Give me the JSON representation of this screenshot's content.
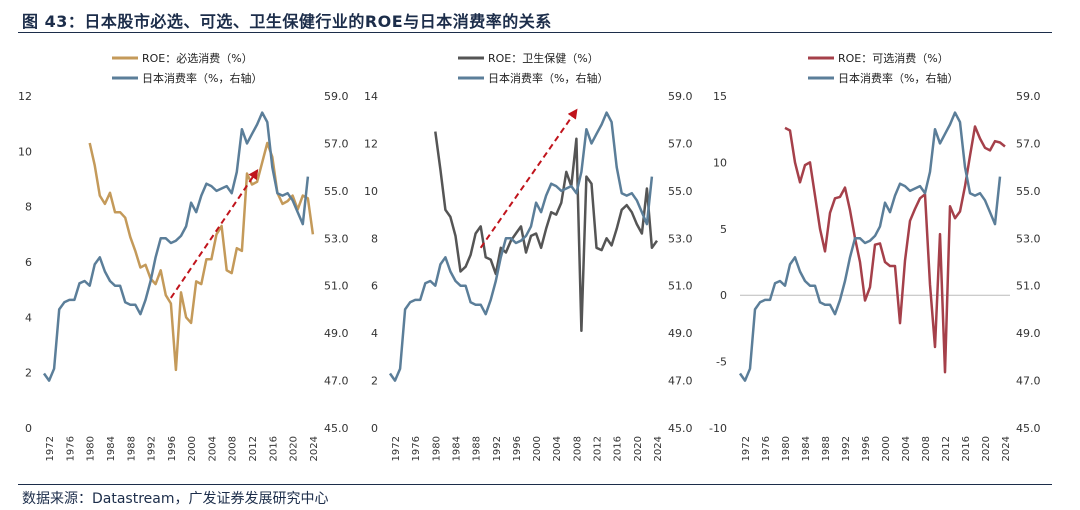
{
  "header": {
    "title": "图 43：日本股市必选、可选、卫生保健行业的ROE与日本消费率的关系"
  },
  "footer": {
    "source": "数据来源：Datastream，广发证券发展研究中心"
  },
  "colors": {
    "title": "#1c2d4a",
    "consumption": "#5b7e99",
    "staples": "#c49a5a",
    "healthcare": "#555555",
    "discretionary": "#a5404a",
    "arrow": "#c0141c"
  },
  "chart_data": [
    {
      "type": "line",
      "panel": "left",
      "x_ticks": [
        "1972",
        "1976",
        "1980",
        "1984",
        "1988",
        "1992",
        "1996",
        "2000",
        "2004",
        "2008",
        "2012",
        "2016",
        "2020",
        "2024"
      ],
      "y_left_ticks": [
        "0",
        "2",
        "4",
        "6",
        "8",
        "10",
        "12"
      ],
      "y_right_ticks": [
        "45.0",
        "47.0",
        "49.0",
        "51.0",
        "53.0",
        "55.0",
        "57.0",
        "59.0"
      ],
      "ylim_left": [
        0,
        12
      ],
      "ylim_right": [
        45,
        59
      ],
      "xlim": [
        1971,
        2025
      ],
      "legend": [
        "ROE：必选消费（%）",
        "日本消费率（%，右轴）"
      ],
      "annotation": "dashed red arrow showing rising trend",
      "arrow": [
        [
          1996,
          4.7
        ],
        [
          2013,
          9.3
        ]
      ],
      "series": [
        {
          "name": "ROE：必选消费（%）",
          "axis": "left",
          "color": "#c49a5a",
          "x": [
            1980,
            1981,
            1982,
            1983,
            1984,
            1985,
            1986,
            1987,
            1988,
            1989,
            1990,
            1991,
            1992,
            1993,
            1994,
            1995,
            1996,
            1997,
            1998,
            1999,
            2000,
            2001,
            2002,
            2003,
            2004,
            2005,
            2006,
            2007,
            2008,
            2009,
            2010,
            2011,
            2012,
            2013,
            2014,
            2015,
            2016,
            2017,
            2018,
            2019,
            2020,
            2021,
            2022,
            2023,
            2024
          ],
          "values": [
            10.3,
            9.5,
            8.4,
            8.1,
            8.5,
            7.8,
            7.8,
            7.6,
            6.9,
            6.4,
            5.8,
            5.9,
            5.4,
            5.2,
            5.7,
            4.8,
            4.5,
            2.1,
            4.9,
            4.0,
            3.8,
            5.3,
            5.2,
            6.1,
            6.1,
            7.0,
            7.3,
            5.7,
            5.6,
            6.5,
            6.4,
            9.2,
            8.8,
            8.9,
            9.6,
            10.3,
            9.8,
            8.5,
            8.1,
            8.2,
            8.4,
            7.9,
            8.4,
            8.3,
            7.0
          ]
        },
        {
          "name": "日本消费率（%，右轴）",
          "axis": "right",
          "color": "#5b7e99",
          "x": [
            1971,
            1972,
            1973,
            1974,
            1975,
            1976,
            1977,
            1978,
            1979,
            1980,
            1981,
            1982,
            1983,
            1984,
            1985,
            1986,
            1987,
            1988,
            1989,
            1990,
            1991,
            1992,
            1993,
            1994,
            1995,
            1996,
            1997,
            1998,
            1999,
            2000,
            2001,
            2002,
            2003,
            2004,
            2005,
            2006,
            2007,
            2008,
            2009,
            2010,
            2011,
            2012,
            2013,
            2014,
            2015,
            2016,
            2017,
            2018,
            2019,
            2020,
            2021,
            2022,
            2023
          ],
          "values": [
            47.3,
            47.0,
            47.5,
            50.0,
            50.3,
            50.4,
            50.4,
            51.1,
            51.2,
            51.0,
            51.9,
            52.2,
            51.6,
            51.2,
            51.0,
            51.0,
            50.3,
            50.2,
            50.2,
            49.8,
            50.4,
            51.2,
            52.2,
            53.0,
            53.0,
            52.8,
            52.9,
            53.1,
            53.5,
            54.5,
            54.1,
            54.8,
            55.3,
            55.2,
            55.0,
            55.1,
            55.2,
            54.9,
            55.8,
            57.6,
            57.0,
            57.4,
            57.8,
            58.3,
            57.9,
            56.0,
            54.9,
            54.8,
            54.9,
            54.6,
            54.1,
            53.6,
            55.6
          ]
        }
      ]
    },
    {
      "type": "line",
      "panel": "middle",
      "x_ticks": [
        "1972",
        "1976",
        "1980",
        "1984",
        "1988",
        "1992",
        "1996",
        "2000",
        "2004",
        "2008",
        "2012",
        "2016",
        "2020",
        "2024"
      ],
      "y_left_ticks": [
        "0",
        "2",
        "4",
        "6",
        "8",
        "10",
        "12",
        "14"
      ],
      "y_right_ticks": [
        "45.0",
        "47.0",
        "49.0",
        "51.0",
        "53.0",
        "55.0",
        "57.0",
        "59.0"
      ],
      "ylim_left": [
        0,
        14
      ],
      "ylim_right": [
        45,
        59
      ],
      "xlim": [
        1971,
        2025
      ],
      "legend": [
        "ROE：卫生保健（%）",
        "日本消费率（%，右轴）"
      ],
      "annotation": "dashed red arrow showing rising trend",
      "arrow": [
        [
          1989,
          7.6
        ],
        [
          2008,
          13.4
        ]
      ],
      "series": [
        {
          "name": "ROE：卫生保健（%）",
          "axis": "left",
          "color": "#555555",
          "x": [
            1980,
            1981,
            1982,
            1983,
            1984,
            1985,
            1986,
            1987,
            1988,
            1989,
            1990,
            1991,
            1992,
            1993,
            1994,
            1995,
            1996,
            1997,
            1998,
            1999,
            2000,
            2001,
            2002,
            2003,
            2004,
            2005,
            2006,
            2007,
            2008,
            2009,
            2010,
            2011,
            2012,
            2013,
            2014,
            2015,
            2016,
            2017,
            2018,
            2019,
            2020,
            2021,
            2022,
            2023,
            2024
          ],
          "values": [
            12.5,
            10.9,
            9.2,
            8.9,
            8.1,
            6.6,
            6.8,
            7.3,
            8.2,
            8.5,
            7.2,
            7.1,
            6.5,
            7.6,
            7.4,
            7.9,
            8.2,
            8.5,
            7.4,
            8.1,
            8.2,
            7.6,
            8.4,
            9.1,
            9.0,
            9.5,
            10.8,
            10.2,
            12.2,
            4.1,
            10.6,
            10.3,
            7.6,
            7.5,
            8.0,
            7.7,
            8.4,
            9.2,
            9.4,
            9.1,
            8.6,
            8.2,
            10.1,
            7.6,
            7.9
          ]
        },
        {
          "name": "日本消费率（%，右轴）",
          "axis": "right",
          "color": "#5b7e99",
          "x": [
            1971,
            1972,
            1973,
            1974,
            1975,
            1976,
            1977,
            1978,
            1979,
            1980,
            1981,
            1982,
            1983,
            1984,
            1985,
            1986,
            1987,
            1988,
            1989,
            1990,
            1991,
            1992,
            1993,
            1994,
            1995,
            1996,
            1997,
            1998,
            1999,
            2000,
            2001,
            2002,
            2003,
            2004,
            2005,
            2006,
            2007,
            2008,
            2009,
            2010,
            2011,
            2012,
            2013,
            2014,
            2015,
            2016,
            2017,
            2018,
            2019,
            2020,
            2021,
            2022,
            2023
          ],
          "values": [
            47.3,
            47.0,
            47.5,
            50.0,
            50.3,
            50.4,
            50.4,
            51.1,
            51.2,
            51.0,
            51.9,
            52.2,
            51.6,
            51.2,
            51.0,
            51.0,
            50.3,
            50.2,
            50.2,
            49.8,
            50.4,
            51.2,
            52.2,
            53.0,
            53.0,
            52.8,
            52.9,
            53.1,
            53.5,
            54.5,
            54.1,
            54.8,
            55.3,
            55.2,
            55.0,
            55.1,
            55.2,
            54.9,
            55.8,
            57.6,
            57.0,
            57.4,
            57.8,
            58.3,
            57.9,
            56.0,
            54.9,
            54.8,
            54.9,
            54.6,
            54.1,
            53.6,
            55.6
          ]
        }
      ]
    },
    {
      "type": "line",
      "panel": "right",
      "x_ticks": [
        "1972",
        "1976",
        "1980",
        "1984",
        "1988",
        "1992",
        "1996",
        "2000",
        "2004",
        "2008",
        "2012",
        "2016",
        "2020",
        "2024"
      ],
      "y_left_ticks": [
        "-10",
        "-5",
        "0",
        "5",
        "10",
        "15"
      ],
      "y_right_ticks": [
        "45.0",
        "47.0",
        "49.0",
        "51.0",
        "53.0",
        "55.0",
        "57.0",
        "59.0"
      ],
      "ylim_left": [
        -10,
        15
      ],
      "ylim_right": [
        45,
        59
      ],
      "xlim": [
        1971,
        2025
      ],
      "legend": [
        "ROE：可选消费（%）",
        "日本消费率（%，右轴）"
      ],
      "series": [
        {
          "name": "ROE：可选消费（%）",
          "axis": "left",
          "color": "#a5404a",
          "x": [
            1980,
            1981,
            1982,
            1983,
            1984,
            1985,
            1986,
            1987,
            1988,
            1989,
            1990,
            1991,
            1992,
            1993,
            1994,
            1995,
            1996,
            1997,
            1998,
            1999,
            2000,
            2001,
            2002,
            2003,
            2004,
            2005,
            2006,
            2007,
            2008,
            2009,
            2010,
            2011,
            2012,
            2013,
            2014,
            2015,
            2016,
            2017,
            2018,
            2019,
            2020,
            2021,
            2022,
            2023,
            2024
          ],
          "values": [
            12.6,
            12.4,
            10.0,
            8.5,
            9.8,
            10.0,
            7.5,
            5.0,
            3.3,
            6.2,
            7.3,
            7.4,
            8.1,
            6.4,
            4.3,
            2.5,
            -0.4,
            0.6,
            3.8,
            3.9,
            2.5,
            2.2,
            2.2,
            -2.1,
            2.6,
            5.6,
            6.5,
            7.3,
            7.6,
            0.8,
            -3.9,
            4.6,
            -5.8,
            6.7,
            5.8,
            6.3,
            8.2,
            10.5,
            12.7,
            11.8,
            11.1,
            10.9,
            11.6,
            11.5,
            11.2
          ]
        },
        {
          "name": "日本消费率（%，右轴）",
          "axis": "right",
          "color": "#5b7e99",
          "x": [
            1971,
            1972,
            1973,
            1974,
            1975,
            1976,
            1977,
            1978,
            1979,
            1980,
            1981,
            1982,
            1983,
            1984,
            1985,
            1986,
            1987,
            1988,
            1989,
            1990,
            1991,
            1992,
            1993,
            1994,
            1995,
            1996,
            1997,
            1998,
            1999,
            2000,
            2001,
            2002,
            2003,
            2004,
            2005,
            2006,
            2007,
            2008,
            2009,
            2010,
            2011,
            2012,
            2013,
            2014,
            2015,
            2016,
            2017,
            2018,
            2019,
            2020,
            2021,
            2022,
            2023
          ],
          "values": [
            47.3,
            47.0,
            47.5,
            50.0,
            50.3,
            50.4,
            50.4,
            51.1,
            51.2,
            51.0,
            51.9,
            52.2,
            51.6,
            51.2,
            51.0,
            51.0,
            50.3,
            50.2,
            50.2,
            49.8,
            50.4,
            51.2,
            52.2,
            53.0,
            53.0,
            52.8,
            52.9,
            53.1,
            53.5,
            54.5,
            54.1,
            54.8,
            55.3,
            55.2,
            55.0,
            55.1,
            55.2,
            54.9,
            55.8,
            57.6,
            57.0,
            57.4,
            57.8,
            58.3,
            57.9,
            56.0,
            54.9,
            54.8,
            54.9,
            54.6,
            54.1,
            53.6,
            55.6
          ]
        }
      ]
    }
  ]
}
